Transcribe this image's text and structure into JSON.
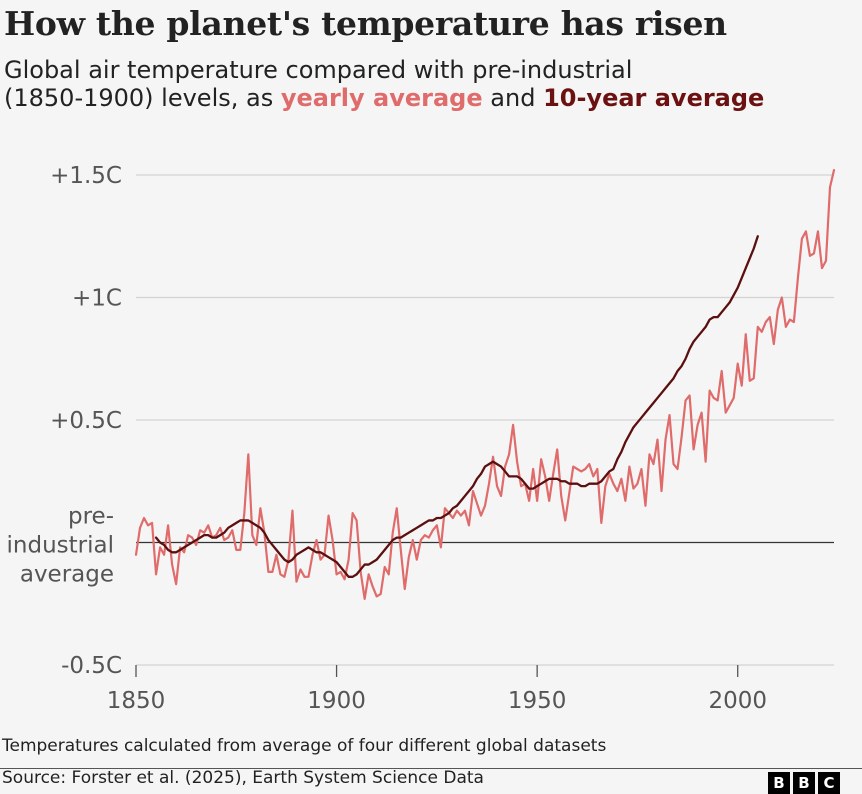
{
  "title": "How the planet's temperature has risen",
  "subtitle": {
    "line1": "Global air temperature compared with pre-industrial",
    "line2_prefix": "(1850-1900) levels, as ",
    "yearly_label": "yearly average",
    "joiner": " and ",
    "decade_label": "10-year average"
  },
  "footnote": "Temperatures calculated from average of four different global datasets",
  "source": "Source: Forster et al. (2025), Earth System Science Data",
  "logo_letters": [
    "B",
    "B",
    "C"
  ],
  "colors": {
    "yearly": "#e06b6b",
    "decade": "#5c0f0f",
    "grid": "#d4d4d4",
    "baseline": "#333333",
    "axis_text": "#555555"
  },
  "chart_data": {
    "type": "line",
    "x_range": [
      1850,
      2024
    ],
    "ylim": [
      -0.5,
      1.5
    ],
    "x_ticks": [
      {
        "value": 1850,
        "label": "1850"
      },
      {
        "value": 1900,
        "label": "1900"
      },
      {
        "value": 1950,
        "label": "1950"
      },
      {
        "value": 2000,
        "label": "2000"
      }
    ],
    "y_ticks": [
      {
        "value": 1.5,
        "label": "+1.5C"
      },
      {
        "value": 1.0,
        "label": "+1C"
      },
      {
        "value": 0.5,
        "label": "+0.5C"
      },
      {
        "value": -0.5,
        "label": "-0.5C"
      }
    ],
    "baseline_label": [
      "pre-",
      "industrial",
      "average"
    ],
    "grid": true,
    "series": [
      {
        "name": "yearly average",
        "start_year": 1850,
        "values": [
          -0.05,
          0.06,
          0.1,
          0.07,
          0.08,
          -0.13,
          -0.02,
          -0.05,
          0.07,
          -0.09,
          -0.17,
          -0.02,
          -0.04,
          0.03,
          0.02,
          -0.01,
          0.05,
          0.04,
          0.07,
          0.02,
          0.03,
          0.06,
          0.01,
          0.02,
          0.05,
          -0.03,
          -0.03,
          0.12,
          0.36,
          0.03,
          -0.01,
          0.14,
          0.04,
          -0.12,
          -0.12,
          -0.05,
          -0.13,
          -0.14,
          -0.07,
          0.13,
          -0.16,
          -0.11,
          -0.14,
          -0.14,
          -0.05,
          0.01,
          -0.07,
          -0.05,
          0.11,
          0.01,
          -0.13,
          -0.12,
          -0.15,
          -0.07,
          0.12,
          0.09,
          -0.12,
          -0.23,
          -0.13,
          -0.18,
          -0.22,
          -0.21,
          -0.1,
          -0.13,
          0.04,
          0.14,
          -0.03,
          -0.19,
          -0.06,
          0.01,
          -0.07,
          0.01,
          0.03,
          0.02,
          0.05,
          0.07,
          -0.02,
          0.14,
          0.12,
          0.1,
          0.13,
          0.11,
          0.13,
          0.07,
          0.21,
          0.16,
          0.11,
          0.15,
          0.24,
          0.35,
          0.23,
          0.19,
          0.31,
          0.36,
          0.48,
          0.33,
          0.23,
          0.24,
          0.17,
          0.3,
          0.17,
          0.34,
          0.27,
          0.17,
          0.28,
          0.38,
          0.19,
          0.09,
          0.2,
          0.31,
          0.3,
          0.29,
          0.3,
          0.32,
          0.27,
          0.3,
          0.08,
          0.23,
          0.28,
          0.24,
          0.21,
          0.26,
          0.17,
          0.31,
          0.22,
          0.24,
          0.3,
          0.15,
          0.36,
          0.32,
          0.42,
          0.21,
          0.42,
          0.52,
          0.32,
          0.3,
          0.43,
          0.58,
          0.6,
          0.38,
          0.48,
          0.53,
          0.33,
          0.62,
          0.59,
          0.58,
          0.7,
          0.53,
          0.56,
          0.59,
          0.73,
          0.64,
          0.85,
          0.66,
          0.67,
          0.88,
          0.86,
          0.9,
          0.92,
          0.81,
          0.95,
          1.0,
          0.88,
          0.91,
          0.9,
          1.08,
          1.24,
          1.27,
          1.17,
          1.18,
          1.27,
          1.12,
          1.15,
          1.45,
          1.52
        ]
      },
      {
        "name": "10-year average",
        "start_year": 1855,
        "values": [
          0.02,
          0.0,
          -0.01,
          -0.03,
          -0.04,
          -0.04,
          -0.03,
          -0.02,
          -0.01,
          0.0,
          0.01,
          0.02,
          0.03,
          0.03,
          0.02,
          0.02,
          0.03,
          0.04,
          0.06,
          0.07,
          0.08,
          0.09,
          0.09,
          0.09,
          0.08,
          0.07,
          0.06,
          0.04,
          0.01,
          -0.01,
          -0.03,
          -0.05,
          -0.07,
          -0.08,
          -0.07,
          -0.05,
          -0.04,
          -0.03,
          -0.02,
          -0.03,
          -0.04,
          -0.04,
          -0.05,
          -0.06,
          -0.07,
          -0.08,
          -0.1,
          -0.12,
          -0.14,
          -0.14,
          -0.13,
          -0.11,
          -0.09,
          -0.09,
          -0.08,
          -0.07,
          -0.05,
          -0.03,
          -0.01,
          0.01,
          0.02,
          0.02,
          0.03,
          0.04,
          0.05,
          0.06,
          0.07,
          0.08,
          0.09,
          0.09,
          0.1,
          0.1,
          0.11,
          0.12,
          0.14,
          0.15,
          0.17,
          0.19,
          0.21,
          0.23,
          0.26,
          0.28,
          0.31,
          0.32,
          0.33,
          0.32,
          0.31,
          0.29,
          0.27,
          0.27,
          0.27,
          0.26,
          0.24,
          0.22,
          0.22,
          0.23,
          0.24,
          0.25,
          0.26,
          0.26,
          0.26,
          0.25,
          0.25,
          0.24,
          0.24,
          0.24,
          0.23,
          0.23,
          0.24,
          0.24,
          0.24,
          0.25,
          0.27,
          0.29,
          0.3,
          0.34,
          0.37,
          0.41,
          0.44,
          0.47,
          0.49,
          0.51,
          0.53,
          0.55,
          0.57,
          0.59,
          0.61,
          0.63,
          0.65,
          0.67,
          0.7,
          0.72,
          0.75,
          0.79,
          0.82,
          0.84,
          0.86,
          0.88,
          0.91,
          0.92,
          0.92,
          0.94,
          0.96,
          0.98,
          1.01,
          1.04,
          1.08,
          1.12,
          1.16,
          1.2,
          1.25
        ]
      }
    ]
  }
}
